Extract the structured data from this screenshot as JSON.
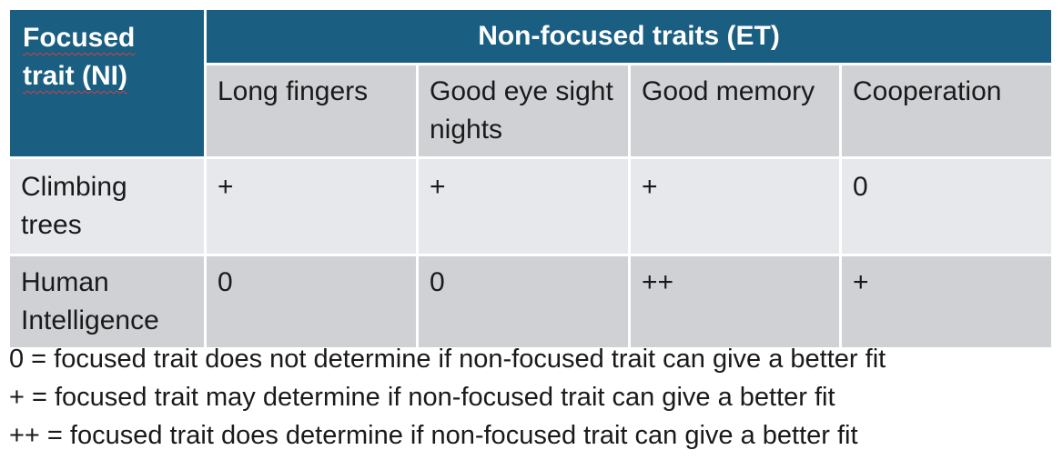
{
  "table": {
    "corner_header": "Focused trait (NI)",
    "group_header": "Non-focused traits (ET)",
    "columns": [
      "Long fingers",
      "Good eye sight nights",
      "Good memory",
      "Cooperation"
    ],
    "rows": [
      {
        "label": "Climbing trees",
        "cells": [
          "+",
          "+",
          "+",
          "0"
        ]
      },
      {
        "label": "Human Intelligence",
        "cells": [
          "0",
          "0",
          "++",
          "+"
        ]
      }
    ]
  },
  "legend": [
    "0  = focused trait does not determine if non-focused trait can give a better fit",
    "+  = focused trait may determine if non-focused trait can give a better fit",
    "++ = focused trait does determine if non-focused trait can give a better fit"
  ],
  "colors": {
    "header_bg": "#1a5e82",
    "subheader_bg": "#cfd1d5",
    "row_light_bg": "#e6e8ec",
    "row_dark_bg": "#cfd1d5"
  }
}
